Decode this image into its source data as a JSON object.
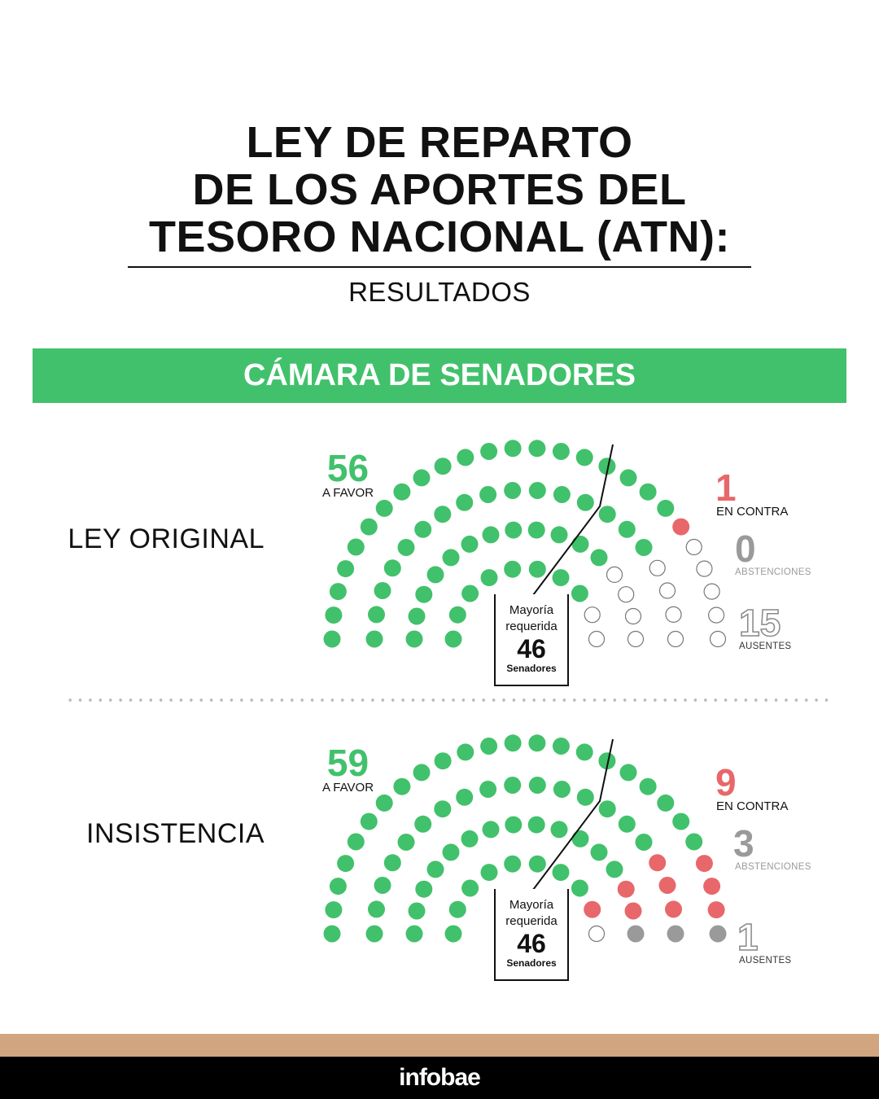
{
  "title": {
    "lines": [
      "LEY DE REPARTO",
      "DE LOS APORTES DEL",
      "TESORO NACIONAL (ATN):"
    ],
    "subtitle": "RESULTADOS"
  },
  "section": {
    "label": "CÁMARA DE SENADORES"
  },
  "colors": {
    "favor": "#41c16b",
    "contra": "#e8676a",
    "abstenciones": "#9a9a9a",
    "ausentes_stroke": "#777777",
    "band": "#41c16b",
    "footer_tan": "#d1a580"
  },
  "chart_data": [
    {
      "type": "parliament",
      "title": "LEY ORIGINAL",
      "total_seats": 72,
      "favor": {
        "value": "56",
        "label": "A FAVOR",
        "count": 56
      },
      "contra": {
        "value": "1",
        "label": "EN CONTRA",
        "count": 1
      },
      "abstenciones": {
        "value": "0",
        "label": "ABSTENCIONES",
        "count": 0
      },
      "ausentes": {
        "value": "15",
        "label": "AUSENTES",
        "count": 15
      },
      "majority": {
        "label1": "Mayoría",
        "label2": "requerida",
        "value": "46",
        "unit": "Senadores"
      }
    },
    {
      "type": "parliament",
      "title": "INSISTENCIA",
      "total_seats": 72,
      "favor": {
        "value": "59",
        "label": "A FAVOR",
        "count": 59
      },
      "contra": {
        "value": "9",
        "label": "EN CONTRA",
        "count": 9
      },
      "abstenciones": {
        "value": "3",
        "label": "ABSTENCIONES",
        "count": 3
      },
      "ausentes": {
        "value": "1",
        "label": "AUSENTES",
        "count": 1
      },
      "majority": {
        "label1": "Mayoría",
        "label2": "requerida",
        "value": "46",
        "unit": "Senadores"
      }
    }
  ],
  "footer": {
    "brand": "infobae"
  }
}
